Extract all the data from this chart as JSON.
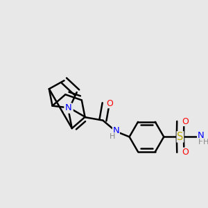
{
  "background_color": "#e8e8e8",
  "bond_color": "#000000",
  "bond_width": 1.8,
  "atom_colors": {
    "Cl": "#00aa00",
    "N": "#0000ff",
    "O": "#ff0000",
    "S": "#bbaa00",
    "H": "#888888",
    "C": "#000000"
  },
  "font_size": 8.5,
  "fig_width": 3.0,
  "fig_height": 3.0,
  "dpi": 100
}
